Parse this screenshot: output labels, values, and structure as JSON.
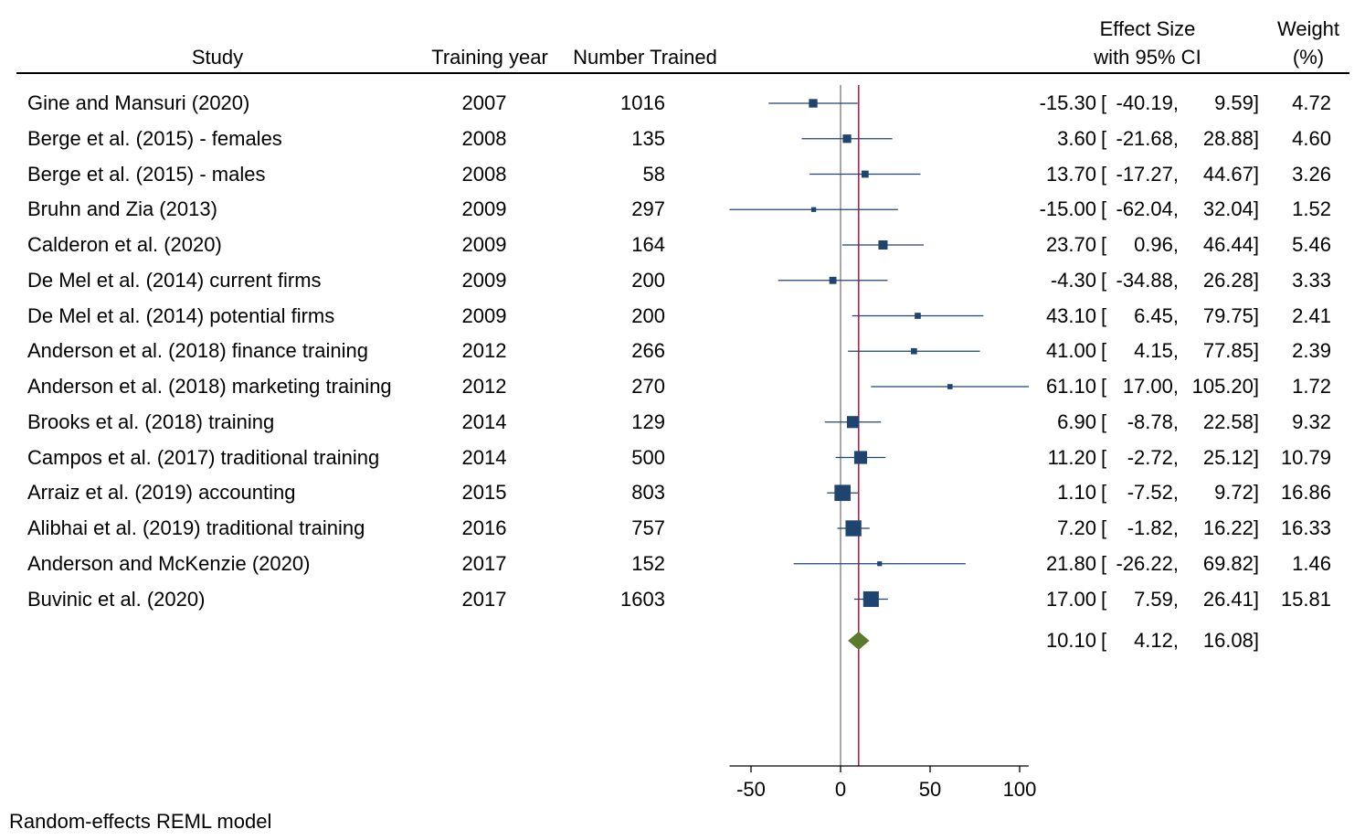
{
  "headers": {
    "study": "Study",
    "year": "Training year",
    "n": "Number Trained",
    "es1": "Effect Size",
    "es2": "with 95% CI",
    "w1": "Weight",
    "w2": "(%)"
  },
  "footer": "Random-effects REML model",
  "chart_data": {
    "type": "forest",
    "x_ticks": [
      -50,
      0,
      50,
      100
    ],
    "xlim": [
      -62,
      105
    ],
    "reference_line": 0,
    "overall_line": 10.1,
    "rows": [
      {
        "study": "Gine and Mansuri (2020)",
        "year": "2007",
        "n": "1016",
        "es": -15.3,
        "lo": -40.19,
        "hi": 9.59,
        "es_t": "-15.30",
        "lo_t": "-40.19,",
        "hi_t": "9.59]",
        "w": "4.72",
        "wv": 4.72,
        "mid": "["
      },
      {
        "study": "Berge et al. (2015) - females",
        "year": "2008",
        "n": "135",
        "es": 3.6,
        "lo": -21.68,
        "hi": 28.88,
        "es_t": "3.60",
        "lo_t": "-21.68,",
        "hi_t": "28.88]",
        "w": "4.60",
        "wv": 4.6,
        "mid": "["
      },
      {
        "study": "Berge et al. (2015) - males",
        "year": "2008",
        "n": "58",
        "es": 13.7,
        "lo": -17.27,
        "hi": 44.67,
        "es_t": "13.70",
        "lo_t": "-17.27,",
        "hi_t": "44.67]",
        "w": "3.26",
        "wv": 3.26,
        "mid": "["
      },
      {
        "study": "Bruhn and Zia (2013)",
        "year": "2009",
        "n": "297",
        "es": -15.0,
        "lo": -62.04,
        "hi": 32.04,
        "es_t": "-15.00",
        "lo_t": "-62.04,",
        "hi_t": "32.04]",
        "w": "1.52",
        "wv": 1.52,
        "mid": "["
      },
      {
        "study": "Calderon et al. (2020)",
        "year": "2009",
        "n": "164",
        "es": 23.7,
        "lo": 0.96,
        "hi": 46.44,
        "es_t": "23.70",
        "lo_t": "0.96,",
        "hi_t": "46.44]",
        "w": "5.46",
        "wv": 5.46,
        "mid": "["
      },
      {
        "study": "De Mel et al. (2014) current firms",
        "year": "2009",
        "n": "200",
        "es": -4.3,
        "lo": -34.88,
        "hi": 26.28,
        "es_t": "-4.30",
        "lo_t": "-34.88,",
        "hi_t": "26.28]",
        "w": "3.33",
        "wv": 3.33,
        "mid": "["
      },
      {
        "study": "De Mel et al. (2014) potential firms",
        "year": "2009",
        "n": "200",
        "es": 43.1,
        "lo": 6.45,
        "hi": 79.75,
        "es_t": "43.10",
        "lo_t": "6.45,",
        "hi_t": "79.75]",
        "w": "2.41",
        "wv": 2.41,
        "mid": "["
      },
      {
        "study": "Anderson et al. (2018) finance training",
        "year": "2012",
        "n": "266",
        "es": 41.0,
        "lo": 4.15,
        "hi": 77.85,
        "es_t": "41.00",
        "lo_t": "4.15,",
        "hi_t": "77.85]",
        "w": "2.39",
        "wv": 2.39,
        "mid": "["
      },
      {
        "study": "Anderson et al. (2018) marketing training",
        "year": "2012",
        "n": "270",
        "es": 61.1,
        "lo": 17.0,
        "hi": 105.2,
        "es_t": "61.10",
        "lo_t": "17.00,",
        "hi_t": "105.20]",
        "w": "1.72",
        "wv": 1.72,
        "mid": "["
      },
      {
        "study": "Brooks et al. (2018) training",
        "year": "2014",
        "n": "129",
        "es": 6.9,
        "lo": -8.78,
        "hi": 22.58,
        "es_t": "6.90",
        "lo_t": "-8.78,",
        "hi_t": "22.58]",
        "w": "9.32",
        "wv": 9.32,
        "mid": "["
      },
      {
        "study": "Campos et al. (2017) traditional training",
        "year": "2014",
        "n": "500",
        "es": 11.2,
        "lo": -2.72,
        "hi": 25.12,
        "es_t": "11.20",
        "lo_t": "-2.72,",
        "hi_t": "25.12]",
        "w": "10.79",
        "wv": 10.79,
        "mid": "["
      },
      {
        "study": "Arraiz et al. (2019) accounting",
        "year": "2015",
        "n": "803",
        "es": 1.1,
        "lo": -7.52,
        "hi": 9.72,
        "es_t": "1.10",
        "lo_t": "-7.52,",
        "hi_t": "9.72]",
        "w": "16.86",
        "wv": 16.86,
        "mid": "["
      },
      {
        "study": "Alibhai et al. (2019) traditional training",
        "year": "2016",
        "n": "757",
        "es": 7.2,
        "lo": -1.82,
        "hi": 16.22,
        "es_t": "7.20",
        "lo_t": "-1.82,",
        "hi_t": "16.22]",
        "w": "16.33",
        "wv": 16.33,
        "mid": "["
      },
      {
        "study": "Anderson and McKenzie (2020)",
        "year": "2017",
        "n": "152",
        "es": 21.8,
        "lo": -26.22,
        "hi": 69.82,
        "es_t": "21.80",
        "lo_t": "-26.22,",
        "hi_t": "69.82]",
        "w": "1.46",
        "wv": 1.46,
        "mid": "["
      },
      {
        "study": "Buvinic et al. (2020)",
        "year": "2017",
        "n": "1603",
        "es": 17.0,
        "lo": 7.59,
        "hi": 26.41,
        "es_t": "17.00",
        "lo_t": "7.59,",
        "hi_t": "26.41]",
        "w": "15.81",
        "wv": 15.81,
        "mid": "["
      }
    ],
    "overall": {
      "es": 10.1,
      "lo": 4.12,
      "hi": 16.08,
      "es_t": "10.10",
      "lo_t": "4.12,",
      "hi_t": "16.08]",
      "mid": "["
    },
    "colors": {
      "marker": "#1f4470",
      "diamond": "#5a7a2e",
      "overall_line": "#c0143c",
      "ref_line": "#8c8c8c",
      "ci": "#1f4470"
    }
  }
}
